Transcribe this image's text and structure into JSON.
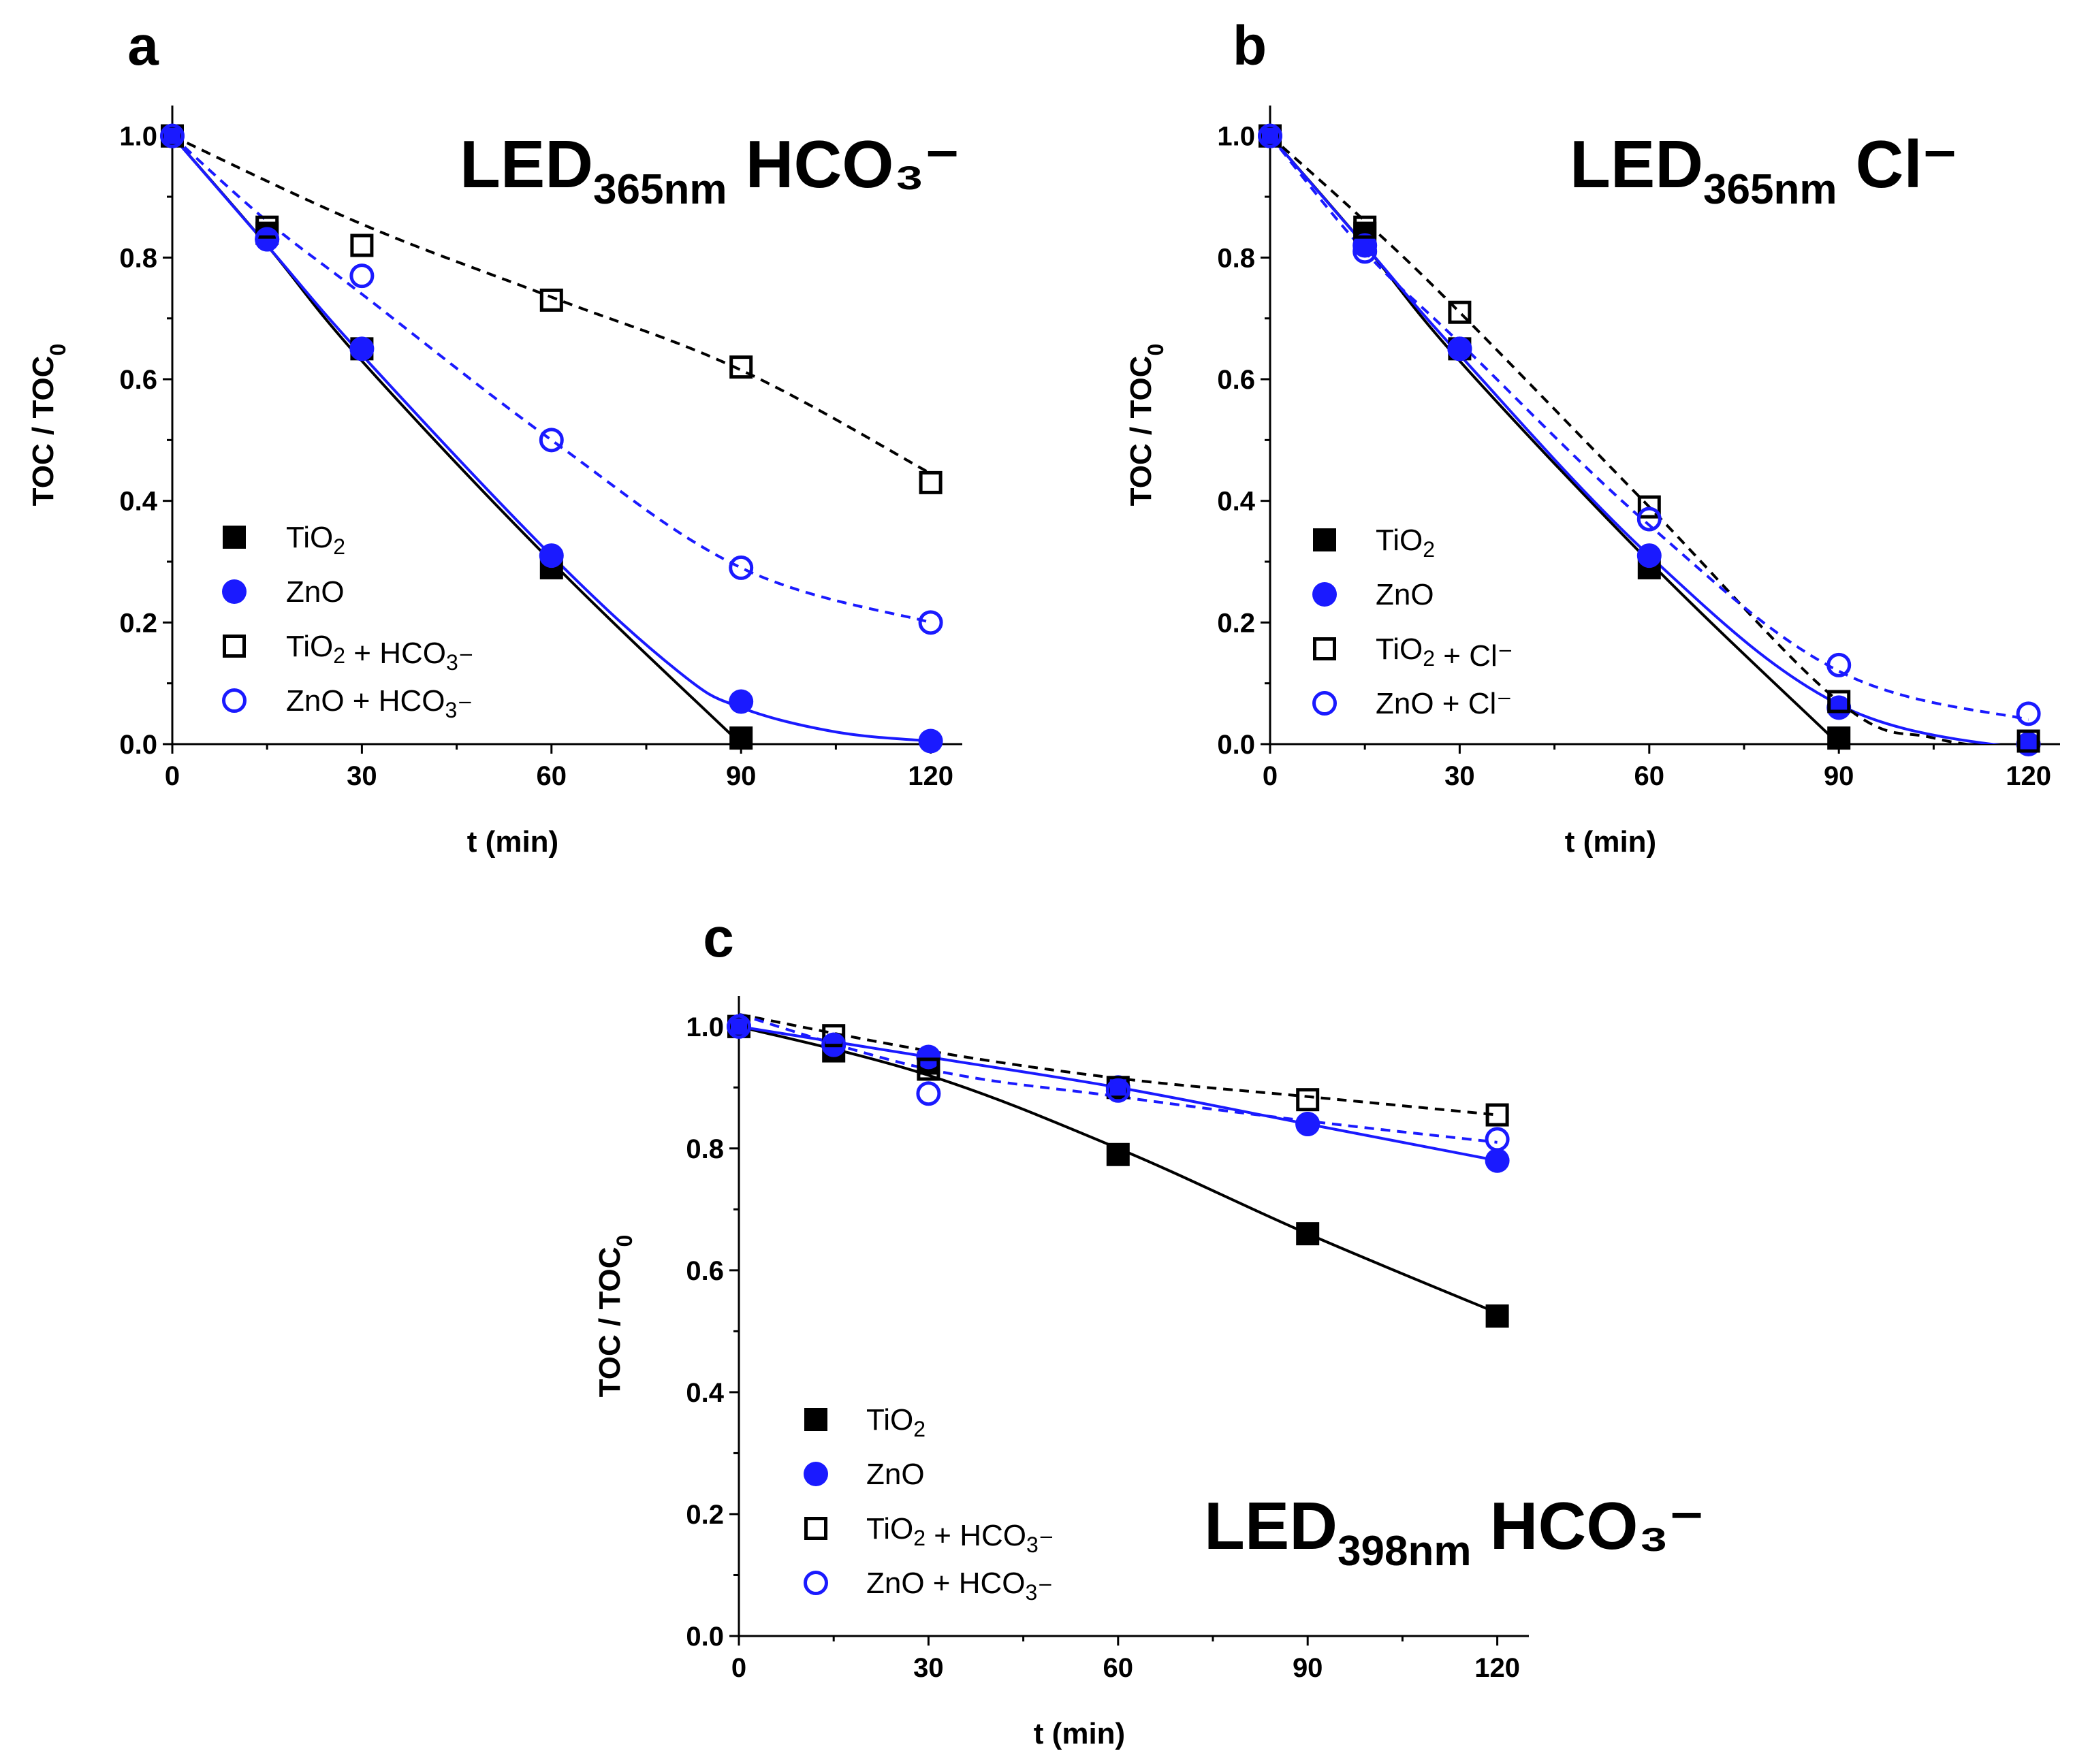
{
  "chart_data": [
    {
      "panel": "a",
      "type": "scatter",
      "title_main": "LED",
      "title_sub": "365nm",
      "title_rest": "HCO₃⁻",
      "xlabel": "t (min)",
      "ylabel": "TOC / TOC0",
      "xlim": [
        0,
        125
      ],
      "ylim": [
        0,
        1.05
      ],
      "x_ticks": [
        "0",
        "30",
        "60",
        "90",
        "120"
      ],
      "y_ticks": [
        "0.0",
        "0.2",
        "0.4",
        "0.6",
        "0.8",
        "1.0"
      ],
      "legend_position": "left-middle",
      "series": [
        {
          "name": "TiO₂",
          "marker": "square-filled",
          "color": "#000000",
          "line": "solid",
          "x": [
            0,
            15,
            30,
            60,
            90
          ],
          "y": [
            1.0,
            0.84,
            0.65,
            0.29,
            0.01
          ],
          "fit": [
            [
              0,
              1.0
            ],
            [
              15,
              0.82
            ],
            [
              30,
              0.63
            ],
            [
              60,
              0.3
            ],
            [
              90,
              0.0
            ],
            [
              92,
              -0.02
            ]
          ]
        },
        {
          "name": "ZnO",
          "marker": "circle-filled",
          "color": "#1a1aff",
          "line": "solid",
          "x": [
            0,
            15,
            30,
            60,
            90,
            120
          ],
          "y": [
            1.0,
            0.83,
            0.65,
            0.31,
            0.07,
            0.005
          ],
          "fit": [
            [
              0,
              1.0
            ],
            [
              15,
              0.82
            ],
            [
              30,
              0.64
            ],
            [
              60,
              0.31
            ],
            [
              80,
              0.12
            ],
            [
              90,
              0.06
            ],
            [
              105,
              0.02
            ],
            [
              120,
              0.005
            ]
          ]
        },
        {
          "name": "TiO₂ + HCO₃⁻",
          "marker": "square-open",
          "color": "#000000",
          "line": "dashed",
          "x": [
            0,
            15,
            30,
            60,
            90,
            120
          ],
          "y": [
            1.0,
            0.85,
            0.82,
            0.73,
            0.62,
            0.43
          ],
          "fit": [
            [
              0,
              1.0
            ],
            [
              30,
              0.855
            ],
            [
              60,
              0.735
            ],
            [
              90,
              0.615
            ],
            [
              120,
              0.445
            ]
          ]
        },
        {
          "name": "ZnO + HCO₃⁻",
          "marker": "circle-open",
          "color": "#1a1aff",
          "line": "dashed",
          "x": [
            0,
            15,
            30,
            60,
            90,
            120
          ],
          "y": [
            1.0,
            0.83,
            0.77,
            0.5,
            0.29,
            0.2
          ],
          "fit": [
            [
              0,
              1.0
            ],
            [
              15,
              0.86
            ],
            [
              30,
              0.74
            ],
            [
              60,
              0.5
            ],
            [
              90,
              0.29
            ],
            [
              120,
              0.2
            ]
          ]
        }
      ]
    },
    {
      "panel": "b",
      "type": "scatter",
      "title_main": "LED",
      "title_sub": "365nm",
      "title_rest": "Cl⁻",
      "xlabel": "t (min)",
      "ylabel": "TOC / TOC0",
      "xlim": [
        0,
        125
      ],
      "ylim": [
        0,
        1.05
      ],
      "x_ticks": [
        "0",
        "30",
        "60",
        "90",
        "120"
      ],
      "y_ticks": [
        "0.0",
        "0.2",
        "0.4",
        "0.6",
        "0.8",
        "1.0"
      ],
      "legend_position": "left-bottom",
      "series": [
        {
          "name": "TiO₂",
          "marker": "square-filled",
          "color": "#000000",
          "line": "solid",
          "x": [
            0,
            15,
            30,
            60,
            90
          ],
          "y": [
            1.0,
            0.84,
            0.65,
            0.29,
            0.01
          ],
          "fit": [
            [
              0,
              1.0
            ],
            [
              15,
              0.82
            ],
            [
              30,
              0.63
            ],
            [
              60,
              0.3
            ],
            [
              90,
              0.0
            ],
            [
              92,
              -0.02
            ]
          ]
        },
        {
          "name": "ZnO",
          "marker": "circle-filled",
          "color": "#1a1aff",
          "line": "solid",
          "x": [
            0,
            15,
            30,
            60,
            90,
            120
          ],
          "y": [
            1.0,
            0.82,
            0.65,
            0.31,
            0.06,
            0.0
          ],
          "fit": [
            [
              0,
              1.0
            ],
            [
              15,
              0.82
            ],
            [
              30,
              0.64
            ],
            [
              60,
              0.31
            ],
            [
              90,
              0.065
            ],
            [
              120,
              -0.01
            ]
          ]
        },
        {
          "name": "TiO₂ + Cl⁻",
          "marker": "square-open",
          "color": "#000000",
          "line": "dashed",
          "x": [
            0,
            15,
            30,
            60,
            90,
            120
          ],
          "y": [
            1.0,
            0.85,
            0.71,
            0.39,
            0.07,
            0.005
          ],
          "fit": [
            [
              0,
              1.0
            ],
            [
              15,
              0.86
            ],
            [
              30,
              0.71
            ],
            [
              60,
              0.39
            ],
            [
              90,
              0.07
            ],
            [
              105,
              0.01
            ],
            [
              120,
              -0.01
            ]
          ]
        },
        {
          "name": "ZnO + Cl⁻",
          "marker": "circle-open",
          "color": "#1a1aff",
          "line": "dashed",
          "x": [
            0,
            15,
            30,
            60,
            90,
            120
          ],
          "y": [
            1.0,
            0.81,
            0.65,
            0.37,
            0.13,
            0.05
          ],
          "fit": [
            [
              0,
              1.0
            ],
            [
              15,
              0.81
            ],
            [
              30,
              0.66
            ],
            [
              60,
              0.36
            ],
            [
              90,
              0.12
            ],
            [
              120,
              0.04
            ]
          ]
        }
      ]
    },
    {
      "panel": "c",
      "type": "scatter",
      "title_main": "LED",
      "title_sub": "398nm",
      "title_rest": "HCO₃⁻",
      "xlabel": "t (min)",
      "ylabel": "TOC / TOC0",
      "xlim": [
        0,
        125
      ],
      "ylim": [
        0,
        1.05
      ],
      "x_ticks": [
        "0",
        "30",
        "60",
        "90",
        "120"
      ],
      "y_ticks": [
        "0.0",
        "0.2",
        "0.4",
        "0.6",
        "0.8",
        "1.0"
      ],
      "legend_position": "left-bottom",
      "series": [
        {
          "name": "TiO₂",
          "marker": "square-filled",
          "color": "#000000",
          "line": "solid",
          "x": [
            0,
            15,
            30,
            60,
            90,
            120
          ],
          "y": [
            1.0,
            0.96,
            0.94,
            0.79,
            0.66,
            0.525
          ],
          "fit": [
            [
              0,
              1.0
            ],
            [
              30,
              0.92
            ],
            [
              60,
              0.8
            ],
            [
              90,
              0.66
            ],
            [
              120,
              0.53
            ]
          ]
        },
        {
          "name": "ZnO",
          "marker": "circle-filled",
          "color": "#1a1aff",
          "line": "solid",
          "x": [
            0,
            15,
            30,
            60,
            90,
            120
          ],
          "y": [
            1.0,
            0.97,
            0.95,
            0.9,
            0.84,
            0.78
          ],
          "fit": [
            [
              0,
              1.0
            ],
            [
              30,
              0.95
            ],
            [
              60,
              0.9
            ],
            [
              90,
              0.84
            ],
            [
              120,
              0.78
            ]
          ]
        },
        {
          "name": "TiO₂ + HCO₃⁻",
          "marker": "square-open",
          "color": "#000000",
          "line": "dashed",
          "x": [
            0,
            15,
            30,
            60,
            90,
            120
          ],
          "y": [
            1.0,
            0.985,
            0.93,
            0.9,
            0.88,
            0.855
          ],
          "fit": [
            [
              0,
              1.02
            ],
            [
              30,
              0.96
            ],
            [
              60,
              0.915
            ],
            [
              90,
              0.885
            ],
            [
              120,
              0.855
            ]
          ]
        },
        {
          "name": "ZnO + HCO₃⁻",
          "marker": "circle-open",
          "color": "#1a1aff",
          "line": "dashed",
          "x": [
            0,
            15,
            30,
            60,
            90,
            120
          ],
          "y": [
            1.0,
            0.97,
            0.89,
            0.895,
            0.84,
            0.815
          ],
          "fit": [
            [
              0,
              1.02
            ],
            [
              30,
              0.93
            ],
            [
              60,
              0.885
            ],
            [
              90,
              0.845
            ],
            [
              120,
              0.81
            ]
          ]
        }
      ]
    }
  ]
}
